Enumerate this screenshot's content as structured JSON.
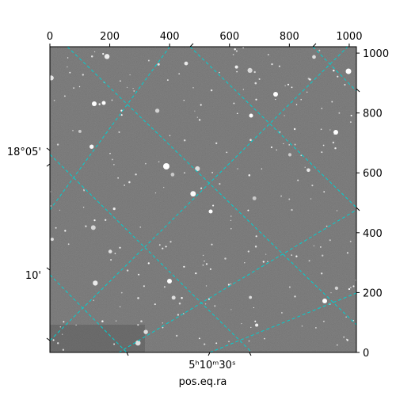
{
  "figure": {
    "xlabel": "pos.eq.ra",
    "grid_color": "#00d0d0",
    "top_ticks": [
      "0",
      "200",
      "400",
      "600",
      "800",
      "1000"
    ],
    "right_ticks": [
      "0",
      "200",
      "400",
      "600",
      "800",
      "1000"
    ],
    "left_dec_labels": [
      "18°05'",
      "10'"
    ],
    "bottom_ra_label": "5ʰ10ᵐ30ˢ"
  }
}
